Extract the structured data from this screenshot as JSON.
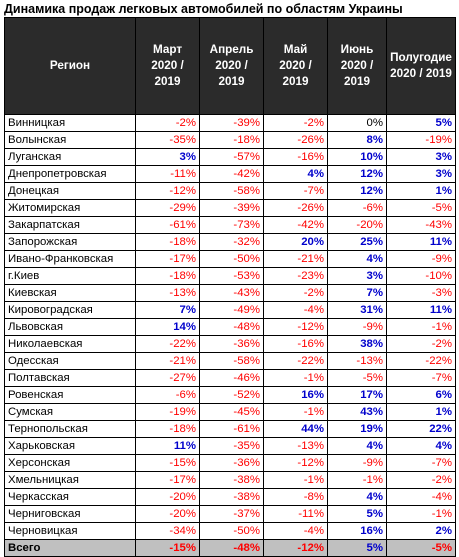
{
  "title": "Динамика продаж легковых автомобилей по областям Украины",
  "headers": {
    "region": "Регион",
    "mar_line1": "Март",
    "mar_line2": "2020 /",
    "mar_line3": "2019",
    "apr_line1": "Апрель",
    "apr_line2": "2020 /",
    "apr_line3": "2019",
    "may_line1": "Май",
    "may_line2": "2020 /",
    "may_line3": "2019",
    "jun_line1": "Июнь",
    "jun_line2": "2020 /",
    "jun_line3": "2019",
    "h1_line1": "Полугодие",
    "h1_line2": "2020 / 2019"
  },
  "rows": [
    {
      "region": "Винницкая",
      "values": [
        "-2%",
        "-39%",
        "-2%",
        "0%",
        "5%"
      ]
    },
    {
      "region": "Волынская",
      "values": [
        "-35%",
        "-18%",
        "-26%",
        "8%",
        "-19%"
      ]
    },
    {
      "region": "Луганская",
      "values": [
        "3%",
        "-57%",
        "-16%",
        "10%",
        "3%"
      ]
    },
    {
      "region": "Днепропетровская",
      "values": [
        "-11%",
        "-42%",
        "4%",
        "12%",
        "3%"
      ]
    },
    {
      "region": "Донецкая",
      "values": [
        "-12%",
        "-58%",
        "-7%",
        "12%",
        "1%"
      ]
    },
    {
      "region": "Житомирская",
      "values": [
        "-29%",
        "-39%",
        "-26%",
        "-6%",
        "-5%"
      ]
    },
    {
      "region": "Закарпатская",
      "values": [
        "-61%",
        "-73%",
        "-42%",
        "-20%",
        "-43%"
      ]
    },
    {
      "region": "Запорожская",
      "values": [
        "-18%",
        "-32%",
        "20%",
        "25%",
        "11%"
      ]
    },
    {
      "region": "Ивано-Франковская",
      "values": [
        "-17%",
        "-50%",
        "-21%",
        "4%",
        "-9%"
      ]
    },
    {
      "region": "г.Киев",
      "values": [
        "-18%",
        "-53%",
        "-23%",
        "3%",
        "-10%"
      ]
    },
    {
      "region": "Киевская",
      "values": [
        "-13%",
        "-43%",
        "-2%",
        "7%",
        "-3%"
      ]
    },
    {
      "region": "Кировоградская",
      "values": [
        "7%",
        "-49%",
        "-4%",
        "31%",
        "11%"
      ]
    },
    {
      "region": "Львовская",
      "values": [
        "14%",
        "-48%",
        "-12%",
        "-9%",
        "-1%"
      ]
    },
    {
      "region": "Николаевская",
      "values": [
        "-22%",
        "-36%",
        "-16%",
        "38%",
        "-2%"
      ]
    },
    {
      "region": "Одесская",
      "values": [
        "-21%",
        "-58%",
        "-22%",
        "-13%",
        "-22%"
      ]
    },
    {
      "region": "Полтавская",
      "values": [
        "-27%",
        "-46%",
        "-1%",
        "-5%",
        "-7%"
      ]
    },
    {
      "region": "Ровенская",
      "values": [
        "-6%",
        "-52%",
        "16%",
        "17%",
        "6%"
      ]
    },
    {
      "region": "Сумская",
      "values": [
        "-19%",
        "-45%",
        "-1%",
        "43%",
        "1%"
      ]
    },
    {
      "region": "Тернопольская",
      "values": [
        "-18%",
        "-61%",
        "44%",
        "19%",
        "22%"
      ]
    },
    {
      "region": "Харьковская",
      "values": [
        "11%",
        "-35%",
        "-13%",
        "4%",
        "4%"
      ]
    },
    {
      "region": "Херсонская",
      "values": [
        "-15%",
        "-36%",
        "-12%",
        "-9%",
        "-7%"
      ]
    },
    {
      "region": "Хмельницкая",
      "values": [
        "-17%",
        "-38%",
        "-1%",
        "-1%",
        "-2%"
      ]
    },
    {
      "region": "Черкасская",
      "values": [
        "-20%",
        "-38%",
        "-8%",
        "4%",
        "-4%"
      ]
    },
    {
      "region": "Черниговская",
      "values": [
        "-20%",
        "-37%",
        "-11%",
        "5%",
        "-1%"
      ]
    },
    {
      "region": "Черновицкая",
      "values": [
        "-34%",
        "-50%",
        "-4%",
        "16%",
        "2%"
      ]
    }
  ],
  "total": {
    "region": "Всего",
    "values": [
      "-15%",
      "-48%",
      "-12%",
      "5%",
      "-5%"
    ]
  },
  "colors": {
    "negative": "#ff0000",
    "positive": "#0000cc",
    "header_bg": "#2b2b2b",
    "total_bg": "#c0c0c0"
  }
}
